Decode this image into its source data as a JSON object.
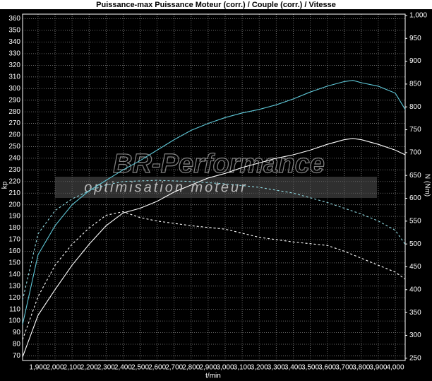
{
  "chart_data": {
    "type": "line",
    "title": "Puissance-max Puissance Moteur (corr.) / Couple (corr.) / Vitesse",
    "x_label": "t/min",
    "y_label": "kp",
    "y2_label": "N (Nm)",
    "watermark": "BR-Performance",
    "watermark_subtitle": "optimisation moteur",
    "background": "#000000",
    "grid": true,
    "xlim": [
      1809,
      4058
    ],
    "ylim": [
      66,
      364
    ],
    "y2lim": [
      245,
      1003
    ],
    "xticks": [
      {
        "value": 1900,
        "label": "1,900"
      },
      {
        "value": 2000,
        "label": "2,000"
      },
      {
        "value": 2100,
        "label": "2,100"
      },
      {
        "value": 2200,
        "label": "2,200"
      },
      {
        "value": 2300,
        "label": "2,300"
      },
      {
        "value": 2400,
        "label": "2,400"
      },
      {
        "value": 2500,
        "label": "2,500"
      },
      {
        "value": 2600,
        "label": "2,600"
      },
      {
        "value": 2700,
        "label": "2,700"
      },
      {
        "value": 2800,
        "label": "2,800"
      },
      {
        "value": 2900,
        "label": "2,900"
      },
      {
        "value": 3000,
        "label": "3,000"
      },
      {
        "value": 3100,
        "label": "3,100"
      },
      {
        "value": 3200,
        "label": "3,200"
      },
      {
        "value": 3300,
        "label": "3,300"
      },
      {
        "value": 3400,
        "label": "3,400"
      },
      {
        "value": 3500,
        "label": "3,500"
      },
      {
        "value": 3600,
        "label": "3,600"
      },
      {
        "value": 3700,
        "label": "3,700"
      },
      {
        "value": 3800,
        "label": "3,800"
      },
      {
        "value": 3900,
        "label": "3,900"
      },
      {
        "value": 4000,
        "label": "4,000"
      }
    ],
    "yticks": [
      70,
      80,
      90,
      100,
      110,
      120,
      130,
      140,
      150,
      160,
      170,
      180,
      190,
      200,
      210,
      220,
      230,
      240,
      250,
      260,
      270,
      280,
      290,
      300,
      310,
      320,
      330,
      340,
      350,
      360
    ],
    "y2ticks": [
      250,
      300,
      350,
      400,
      450,
      500,
      550,
      600,
      650,
      700,
      750,
      800,
      850,
      900,
      950,
      {
        "value": 1000,
        "label": "1,000"
      }
    ],
    "series": [
      {
        "color": "#5fc8d8",
        "dashed": false,
        "x": [
          1809,
          1900,
          2000,
          2100,
          2200,
          2300,
          2400,
          2500,
          2600,
          2700,
          2800,
          2900,
          3000,
          3100,
          3200,
          3300,
          3400,
          3500,
          3600,
          3700,
          3750,
          3800,
          3900,
          4000,
          4058
        ],
        "values": [
          97,
          157,
          182,
          200,
          212,
          221,
          230,
          238,
          247,
          256,
          264,
          270,
          275,
          279,
          282,
          286,
          291,
          297,
          302,
          306,
          307,
          305,
          302,
          296,
          282
        ]
      },
      {
        "color": "#ffffff",
        "dashed": false,
        "x": [
          1809,
          1900,
          2000,
          2100,
          2200,
          2300,
          2400,
          2500,
          2600,
          2700,
          2800,
          2900,
          3000,
          3100,
          3200,
          3300,
          3400,
          3500,
          3600,
          3700,
          3750,
          3800,
          3900,
          4000,
          4058
        ],
        "values": [
          69,
          105,
          127,
          148,
          166,
          182,
          193,
          197,
          203,
          211,
          217,
          223,
          227,
          232,
          236,
          240,
          243,
          247,
          252,
          256,
          257,
          256,
          252,
          247,
          243
        ]
      },
      {
        "color": "#ffffff",
        "dashed": true,
        "x": [
          1809,
          1900,
          2000,
          2100,
          2200,
          2300,
          2400,
          2500,
          2600,
          2800,
          3000,
          3200,
          3400,
          3600,
          3700,
          3800,
          3900,
          4000,
          4058
        ],
        "values": [
          84,
          121,
          148,
          166,
          180,
          191,
          194,
          189,
          186,
          182,
          179,
          172,
          168,
          165,
          160,
          154,
          148,
          142,
          136
        ]
      },
      {
        "color": "#8fd8e0",
        "dashed": true,
        "x": [
          1809,
          1900,
          2000,
          2100,
          2200,
          2300,
          2400,
          2600,
          2800,
          3000,
          3200,
          3400,
          3600,
          3700,
          3800,
          3900,
          4000,
          4058
        ],
        "values": [
          118,
          175,
          195,
          205,
          212,
          217,
          220,
          221,
          220,
          218,
          215,
          210,
          202,
          197,
          192,
          186,
          178,
          166
        ]
      }
    ]
  }
}
